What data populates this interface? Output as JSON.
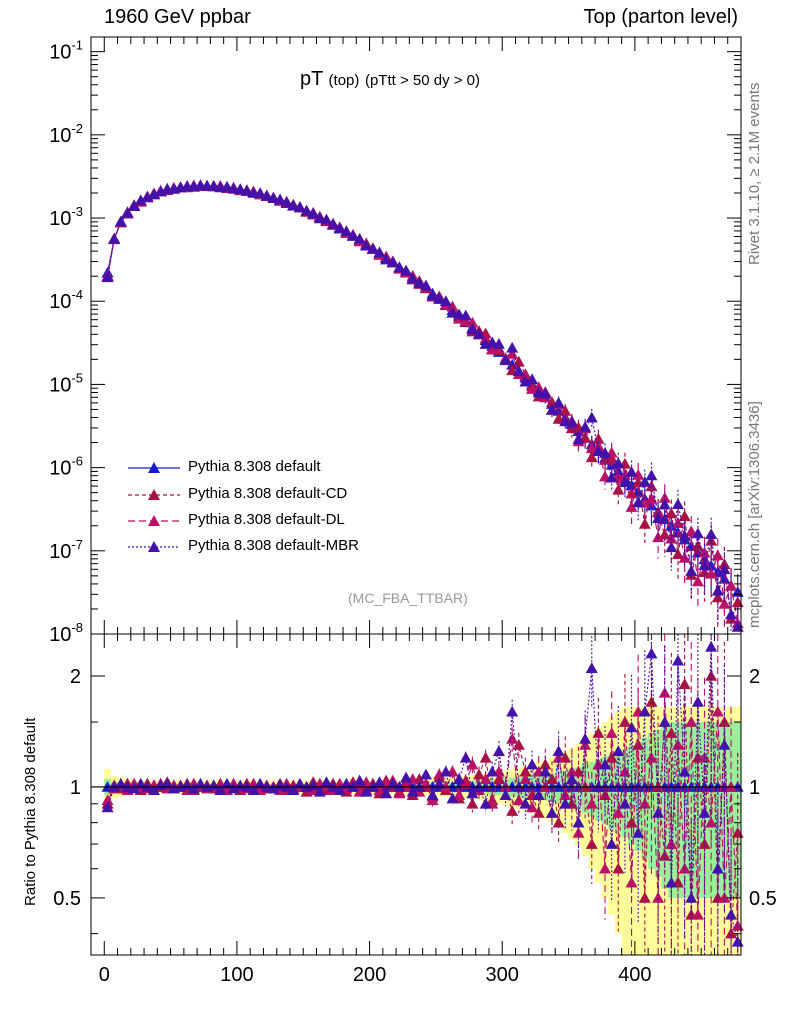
{
  "header": {
    "left": "1960 GeV ppbar",
    "right": "Top (parton level)"
  },
  "side_text": {
    "top": "Rivet 3.1.10, ≥ 2.1M events",
    "bottom": "mcplots.cern.ch [arXiv:1306.3436]"
  },
  "plot_title": {
    "main": "pT",
    "sub1": "(top)",
    "sub2": "(pTtt > 50 dy > 0)"
  },
  "watermark": "(MC_FBA_TTBAR)",
  "ratio_ylabel": "Ratio to Pythia 8.308 default",
  "legend": [
    {
      "label": "Pythia 8.308 default",
      "color": "#1a1acc",
      "dash": ""
    },
    {
      "label": "Pythia 8.308 default-CD",
      "color": "#aa1144",
      "dash": "4,3"
    },
    {
      "label": "Pythia 8.308 default-DL",
      "color": "#bb1166",
      "dash": "7,4"
    },
    {
      "label": "Pythia 8.308 default-MBR",
      "color": "#4411aa",
      "dash": "2,2"
    }
  ],
  "colors": {
    "band_outer": "#ffff99",
    "band_inner": "#99ee99"
  },
  "chart_data": {
    "type": "line",
    "main": {
      "ylog": true,
      "ylim": [
        1e-08,
        0.15
      ],
      "xlim": [
        -10,
        480
      ],
      "ytick_labels": [
        "10^-1",
        "10^-2",
        "10^-3",
        "10^-4",
        "10^-5",
        "10^-6",
        "10^-7",
        "10^-8"
      ],
      "x": [
        2.5,
        7.5,
        12.5,
        17.5,
        22.5,
        27.5,
        32.5,
        37.5,
        42.5,
        47.5,
        52.5,
        57.5,
        62.5,
        67.5,
        72.5,
        77.5,
        82.5,
        87.5,
        92.5,
        97.5,
        102.5,
        107.5,
        112.5,
        117.5,
        122.5,
        127.5,
        132.5,
        137.5,
        142.5,
        147.5,
        152.5,
        157.5,
        162.5,
        167.5,
        172.5,
        177.5,
        182.5,
        187.5,
        192.5,
        197.5,
        202.5,
        207.5,
        212.5,
        217.5,
        222.5,
        227.5,
        232.5,
        237.5,
        242.5,
        247.5,
        252.5,
        257.5,
        262.5,
        267.5,
        272.5,
        277.5,
        282.5,
        287.5,
        292.5,
        297.5,
        302.5,
        307.5,
        312.5,
        317.5,
        322.5,
        327.5,
        332.5,
        337.5,
        342.5,
        347.5,
        352.5,
        357.5,
        362.5,
        367.5,
        372.5,
        377.5,
        382.5,
        387.5,
        392.5,
        397.5,
        402.5,
        407.5,
        412.5,
        417.5,
        422.5,
        427.5,
        432.5,
        437.5,
        442.5,
        447.5,
        452.5,
        457.5,
        462.5,
        467.5,
        472.5,
        477.5
      ],
      "series": [
        {
          "name": "Pythia 8.308 default",
          "values": [
            0.00022,
            0.00056,
            0.00089,
            0.00115,
            0.0014,
            0.0016,
            0.00178,
            0.00195,
            0.00208,
            0.00218,
            0.00227,
            0.00233,
            0.00238,
            0.00241,
            0.00243,
            0.00243,
            0.00241,
            0.00238,
            0.00233,
            0.00227,
            0.0022,
            0.00212,
            0.00204,
            0.00195,
            0.00185,
            0.00175,
            0.00164,
            0.00154,
            0.00143,
            0.00133,
            0.00122,
            0.00112,
            0.00102,
            0.00093,
            0.00084,
            0.00076,
            0.00068,
            0.00061,
            0.00054,
            0.00048,
            0.000425,
            0.000375,
            0.00033,
            0.00029,
            0.000255,
            0.00022,
            0.000192,
            0.000166,
            0.000143,
            0.000123,
            0.000106,
            9.1e-05,
            7.8e-05,
            6.6e-05,
            5.6e-05,
            4.8e-05,
            4.05e-05,
            3.4e-05,
            2.9e-05,
            2.45e-05,
            2.05e-05,
            1.72e-05,
            1.44e-05,
            1.2e-05,
            1e-05,
            8.4e-06,
            7e-06,
            5.8e-06,
            4.8e-06,
            4e-06,
            3.3e-06,
            2.75e-06,
            2.28e-06,
            1.9e-06,
            1.58e-06,
            1.3e-06,
            1.08e-06,
            9e-07,
            7.4e-07,
            6.1e-07,
            5.1e-07,
            4.2e-07,
            3.5e-07,
            2.9e-07,
            2.4e-07,
            2e-07,
            1.65e-07,
            1.37e-07,
            1.14e-07,
            9.5e-08,
            7.9e-08,
            6.6e-08,
            5.5e-08,
            4.6e-08,
            3.8e-08,
            3.2e-08
          ]
        }
      ]
    },
    "ratio": {
      "ylog": true,
      "ylim": [
        0.35,
        2.6
      ],
      "yticks": [
        0.5,
        1,
        2
      ],
      "xticks": [
        0,
        100,
        200,
        300,
        400
      ],
      "series": [
        {
          "name": "Pythia 8.308 default",
          "values": [
            1,
            1,
            1,
            1,
            1,
            1,
            1,
            1,
            1,
            1,
            1,
            1,
            1,
            1,
            1,
            1,
            1,
            1,
            1,
            1,
            1,
            1,
            1,
            1,
            1,
            1,
            1,
            1,
            1,
            1,
            1,
            1,
            1,
            1,
            1,
            1,
            1,
            1,
            1,
            1,
            1,
            1,
            1,
            1,
            1,
            1,
            1,
            1,
            1,
            1,
            1,
            1,
            1,
            1,
            1,
            1,
            1,
            1,
            1,
            1,
            1,
            1,
            1,
            1,
            1,
            1,
            1,
            1,
            1,
            1,
            1,
            1,
            1,
            1,
            1,
            1,
            1,
            1,
            1,
            1,
            1,
            1,
            1,
            1,
            1,
            1,
            1,
            1,
            1,
            1,
            1,
            1,
            1,
            1,
            1,
            1
          ]
        },
        {
          "name": "Pythia 8.308 default-CD",
          "values": [
            0.9,
            1.01,
            0.99,
            1.02,
            1.0,
            0.98,
            1.02,
            1.01,
            1.0,
            1.03,
            0.99,
            1.01,
            1.02,
            0.98,
            1.0,
            1.01,
            0.99,
            1.02,
            1.0,
            1.01,
            0.98,
            1.02,
            1.0,
            1.01,
            0.99,
            1.0,
            1.02,
            0.98,
            1.01,
            1.0,
            0.97,
            1.03,
            1.0,
            0.98,
            1.02,
            1.0,
            0.97,
            1.03,
            1.01,
            0.98,
            1.02,
            0.96,
            1.04,
            1.0,
            0.97,
            1.03,
            0.95,
            1.05,
            1.0,
            0.94,
            1.06,
            0.98,
            1.1,
            0.93,
            1.04,
            0.9,
            1.08,
            1.2,
            0.92,
            1.05,
            1.0,
            0.86,
            1.3,
            1.1,
            0.95,
            0.85,
            1.15,
            1.05,
            0.8,
            1.2,
            0.9,
            1.1,
            1.0,
            0.7,
            1.4,
            0.95,
            1.2,
            0.6,
            1.5,
            0.8,
            1.3,
            0.5,
            1.7,
            1.0,
            0.65,
            1.4,
            0.55,
            1.9,
            0.45,
            1.2,
            0.7,
            2.0,
            0.5,
            1.5,
            0.4,
            0.75
          ]
        },
        {
          "name": "Pythia 8.308 default-DL",
          "values": [
            0.92,
            0.99,
            1.01,
            0.98,
            1.02,
            1.0,
            0.99,
            1.01,
            1.02,
            0.99,
            1.01,
            1.0,
            0.98,
            1.02,
            1.01,
            0.99,
            1.0,
            1.01,
            0.98,
            1.02,
            1.0,
            0.99,
            1.02,
            0.98,
            1.01,
            1.0,
            0.98,
            1.02,
            0.99,
            1.01,
            1.0,
            0.98,
            1.02,
            1.01,
            0.98,
            1.02,
            0.99,
            1.01,
            0.97,
            1.03,
            1.0,
            0.98,
            1.02,
            1.04,
            0.96,
            1.0,
            1.05,
            0.97,
            1.02,
            0.92,
            1.08,
            1.0,
            1.1,
            0.95,
            1.02,
            1.15,
            0.98,
            1.05,
            0.9,
            1.1,
            1.0,
            1.35,
            0.92,
            1.05,
            0.88,
            1.1,
            1.0,
            0.85,
            1.2,
            0.95,
            1.1,
            0.75,
            1.3,
            0.9,
            1.15,
            0.6,
            1.4,
            0.85,
            1.1,
            0.55,
            1.6,
            0.9,
            1.2,
            0.5,
            1.8,
            0.7,
            1.3,
            0.6,
            1.5,
            0.45,
            1.2,
            0.8,
            1.6,
            0.5,
            1.0,
            0.42
          ]
        },
        {
          "name": "Pythia 8.308 default-MBR",
          "values": [
            0.88,
            1.0,
            1.02,
            1.0,
            0.99,
            1.02,
            1.0,
            0.98,
            1.01,
            1.02,
            0.99,
            1.0,
            1.01,
            0.99,
            1.02,
            1.0,
            1.01,
            0.98,
            1.02,
            0.99,
            1.01,
            1.0,
            0.98,
            1.02,
            1.0,
            0.99,
            1.01,
            1.0,
            0.98,
            1.02,
            1.0,
            1.01,
            0.97,
            1.03,
            1.0,
            0.98,
            1.02,
            1.0,
            1.04,
            0.97,
            1.0,
            1.03,
            0.96,
            1.02,
            1.0,
            1.06,
            0.97,
            1.0,
            1.08,
            0.95,
            1.02,
            1.1,
            0.93,
            1.05,
            1.2,
            0.96,
            1.0,
            0.9,
            1.1,
            1.25,
            0.95,
            1.6,
            1.0,
            0.9,
            1.15,
            0.95,
            1.1,
            0.85,
            1.25,
            0.9,
            1.05,
            0.8,
            1.35,
            2.1,
            1.0,
            1.15,
            0.7,
            1.25,
            0.9,
            1.45,
            0.75,
            1.6,
            2.3,
            0.85,
            1.5,
            0.55,
            2.2,
            1.1,
            0.5,
            1.7,
            0.85,
            2.4,
            0.6,
            1.3,
            0.45,
            0.38
          ]
        }
      ],
      "band_inner": [
        0.05,
        0.03,
        0.03,
        0.02,
        0.02,
        0.02,
        0.02,
        0.02,
        0.02,
        0.02,
        0.02,
        0.02,
        0.02,
        0.02,
        0.02,
        0.02,
        0.02,
        0.02,
        0.02,
        0.02,
        0.02,
        0.02,
        0.02,
        0.02,
        0.02,
        0.02,
        0.02,
        0.02,
        0.02,
        0.02,
        0.02,
        0.02,
        0.02,
        0.02,
        0.02,
        0.02,
        0.02,
        0.02,
        0.02,
        0.02,
        0.02,
        0.02,
        0.02,
        0.02,
        0.02,
        0.02,
        0.02,
        0.02,
        0.02,
        0.03,
        0.03,
        0.03,
        0.03,
        0.03,
        0.03,
        0.04,
        0.04,
        0.04,
        0.05,
        0.05,
        0.05,
        0.06,
        0.06,
        0.07,
        0.07,
        0.08,
        0.08,
        0.09,
        0.1,
        0.11,
        0.12,
        0.13,
        0.15,
        0.17,
        0.19,
        0.21,
        0.23,
        0.25,
        0.27,
        0.3,
        0.33,
        0.36,
        0.4,
        0.43,
        0.47,
        0.5,
        0.5,
        0.5,
        0.5,
        0.5,
        0.5,
        0.5,
        0.5,
        0.5,
        0.5,
        0.5
      ],
      "band_outer": [
        0.12,
        0.07,
        0.06,
        0.05,
        0.04,
        0.04,
        0.04,
        0.04,
        0.04,
        0.04,
        0.04,
        0.04,
        0.04,
        0.04,
        0.04,
        0.04,
        0.04,
        0.04,
        0.04,
        0.04,
        0.04,
        0.04,
        0.04,
        0.04,
        0.04,
        0.04,
        0.04,
        0.04,
        0.04,
        0.04,
        0.04,
        0.04,
        0.04,
        0.04,
        0.04,
        0.04,
        0.04,
        0.04,
        0.04,
        0.04,
        0.04,
        0.04,
        0.04,
        0.04,
        0.04,
        0.05,
        0.05,
        0.05,
        0.05,
        0.06,
        0.06,
        0.06,
        0.06,
        0.07,
        0.07,
        0.08,
        0.08,
        0.09,
        0.1,
        0.1,
        0.11,
        0.12,
        0.13,
        0.14,
        0.15,
        0.17,
        0.18,
        0.2,
        0.22,
        0.25,
        0.28,
        0.31,
        0.35,
        0.4,
        0.45,
        0.5,
        0.55,
        0.6,
        0.65,
        0.65,
        0.65,
        0.65,
        0.65,
        0.65,
        0.65,
        0.65,
        0.65,
        0.65,
        0.65,
        0.65,
        0.65,
        0.65,
        0.65,
        0.65,
        0.65,
        0.65
      ]
    }
  }
}
